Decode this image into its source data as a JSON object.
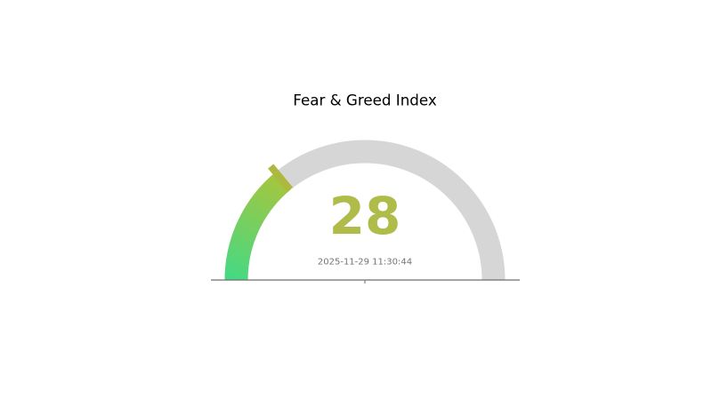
{
  "chart_data": {
    "type": "gauge",
    "title": "Fear & Greed Index",
    "value": 28,
    "min": 0,
    "max": 100,
    "start_angle_deg": 180,
    "end_angle_deg": 0,
    "timestamp": "2025-11-29 11:30:44",
    "grid": false,
    "legend": "none"
  },
  "colors": {
    "background": "#ffffff",
    "title_text": "#000000",
    "value_text": "#afbc4a",
    "timestamp_text": "#757575",
    "track": "#d6d6d6",
    "gradient_start": "#46d983",
    "gradient_end": "#a4c63f",
    "pointer": "#adb83e",
    "axis_line": "#6e6e6e"
  }
}
